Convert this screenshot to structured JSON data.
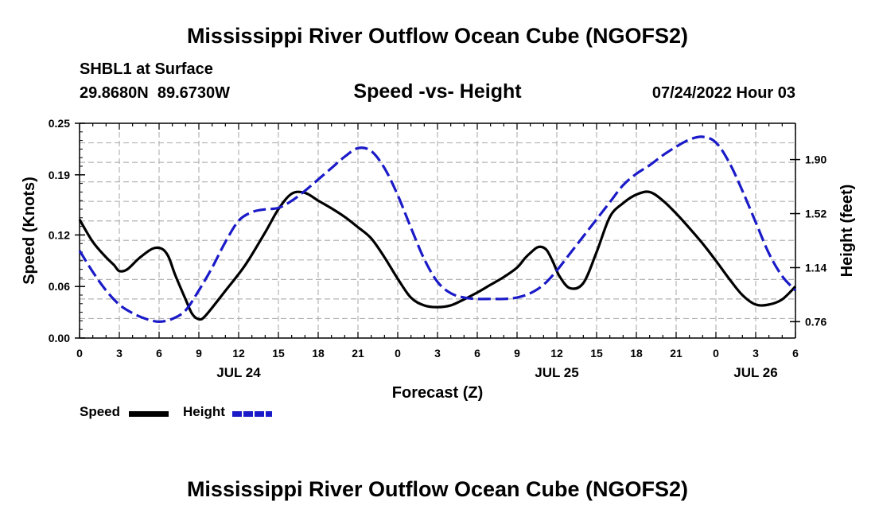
{
  "header": {
    "title": "Mississippi River Outflow Ocean Cube (NGOFS2)",
    "station": "SHBL1 at Surface",
    "coords": "29.8680N  89.6730W",
    "plot_title": "Speed -vs- Height",
    "datetime": "07/24/2022 Hour 03"
  },
  "footer": {
    "title": "Mississippi River Outflow Ocean Cube (NGOFS2)"
  },
  "legend": {
    "speed_label": "Speed",
    "height_label": "Height"
  },
  "colors": {
    "speed": "#000000",
    "height": "#1a1ac8",
    "grid": "#b4b4b4"
  },
  "chart_data": {
    "type": "line",
    "title": "Speed -vs- Height",
    "xlabel": "Forecast (Z)",
    "ylabel": "Speed (Knots)",
    "y2label": "Height (feet)",
    "xlim": [
      0,
      54
    ],
    "ylim": [
      0,
      0.25
    ],
    "y2lim": [
      0.645,
      2.155
    ],
    "grid": true,
    "x_ticks": [
      0,
      3,
      6,
      9,
      12,
      15,
      18,
      21,
      24,
      27,
      30,
      33,
      36,
      39,
      42,
      45,
      48,
      51,
      54
    ],
    "x_tick_labels": [
      "0",
      "3",
      "6",
      "9",
      "12",
      "15",
      "18",
      "21",
      "0",
      "3",
      "6",
      "9",
      "12",
      "15",
      "18",
      "21",
      "0",
      "3",
      "6"
    ],
    "y_ticks": [
      0,
      0.06,
      0.12,
      0.19,
      0.25
    ],
    "y_tick_labels": [
      "0.00",
      "0.06",
      "0.12",
      "0.19",
      "0.25"
    ],
    "y2_ticks": [
      0.76,
      1.14,
      1.52,
      1.9
    ],
    "y2_tick_labels": [
      "0.76",
      "1.14",
      "1.52",
      "1.90"
    ],
    "day_labels": [
      {
        "x": 12,
        "label": "JUL 24"
      },
      {
        "x": 36,
        "label": "JUL 25"
      },
      {
        "x": 51,
        "label": "JUL 26"
      }
    ],
    "series": [
      {
        "name": "Speed",
        "axis": "left",
        "style": "solid",
        "x": [
          0,
          1,
          2,
          2.6,
          3,
          3.6,
          4.5,
          5.5,
          6.2,
          6.7,
          7.2,
          8,
          8.5,
          9,
          9.5,
          11,
          12.5,
          14,
          15,
          16,
          17,
          18,
          19,
          20,
          21,
          22,
          23,
          24,
          25,
          26,
          27,
          28,
          29,
          30,
          31,
          32,
          33,
          33.6,
          34,
          34.6,
          35.2,
          35.7,
          36.2,
          37,
          38,
          39,
          40,
          41,
          42,
          43,
          44,
          45,
          46,
          47,
          48,
          49,
          50,
          51,
          52,
          53,
          54
        ],
        "y": [
          0.138,
          0.112,
          0.094,
          0.085,
          0.078,
          0.08,
          0.093,
          0.104,
          0.104,
          0.095,
          0.074,
          0.045,
          0.028,
          0.022,
          0.026,
          0.055,
          0.085,
          0.123,
          0.15,
          0.168,
          0.169,
          0.16,
          0.151,
          0.141,
          0.129,
          0.116,
          0.094,
          0.069,
          0.047,
          0.038,
          0.036,
          0.038,
          0.045,
          0.053,
          0.062,
          0.071,
          0.082,
          0.093,
          0.099,
          0.106,
          0.103,
          0.089,
          0.072,
          0.058,
          0.064,
          0.1,
          0.141,
          0.157,
          0.167,
          0.17,
          0.16,
          0.145,
          0.128,
          0.11,
          0.09,
          0.069,
          0.05,
          0.039,
          0.039,
          0.045,
          0.06
        ]
      },
      {
        "name": "Height",
        "axis": "right",
        "style": "dashed",
        "x": [
          0,
          1,
          2,
          3,
          4,
          5,
          6,
          7,
          8,
          9,
          10,
          11,
          12,
          13,
          14,
          15,
          16,
          17,
          18,
          19,
          20,
          21,
          22,
          23,
          24,
          25,
          26,
          27,
          28,
          29,
          30,
          31,
          32,
          33,
          34,
          35,
          36,
          37,
          38,
          39,
          40,
          41,
          42,
          43,
          44,
          45,
          46,
          47,
          48,
          49,
          50,
          51,
          52,
          53,
          54
        ],
        "y": [
          1.26,
          1.11,
          0.98,
          0.88,
          0.82,
          0.78,
          0.76,
          0.78,
          0.84,
          0.98,
          1.14,
          1.32,
          1.47,
          1.53,
          1.55,
          1.56,
          1.61,
          1.68,
          1.76,
          1.84,
          1.92,
          1.98,
          1.96,
          1.84,
          1.65,
          1.42,
          1.2,
          1.04,
          0.96,
          0.93,
          0.92,
          0.92,
          0.92,
          0.93,
          0.96,
          1.02,
          1.12,
          1.24,
          1.36,
          1.48,
          1.6,
          1.72,
          1.8,
          1.86,
          1.93,
          1.99,
          2.04,
          2.06,
          2.02,
          1.88,
          1.68,
          1.46,
          1.24,
          1.08,
          0.98
        ]
      }
    ]
  }
}
